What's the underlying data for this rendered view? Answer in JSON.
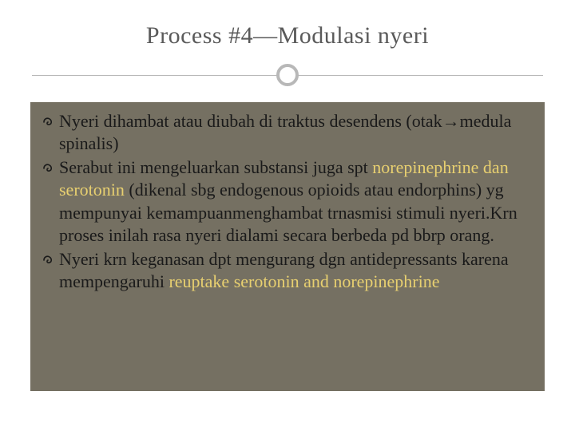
{
  "slide": {
    "title": "Process #4—Modulasi nyeri",
    "title_color": "#5a5a5a",
    "title_fontsize": 30,
    "divider_color": "#b8b8b8",
    "content_background": "#757062",
    "text_color": "#1a1a1a",
    "highlight_color": "#e8d070",
    "body_fontsize": 22,
    "bullets": [
      {
        "segments": [
          {
            "text": "Nyeri dihambat atau diubah di traktus desendens (otak",
            "highlight": false
          },
          {
            "text": "→",
            "highlight": false
          },
          {
            "text": "medula spinalis)",
            "highlight": false
          }
        ]
      },
      {
        "segments": [
          {
            "text": "Serabut ini mengeluarkan substansi juga spt ",
            "highlight": false
          },
          {
            "text": "norepinephrine dan serotonin",
            "highlight": true
          },
          {
            "text": " (dikenal sbg endogenous opioids atau endorphins) yg mempunyai kemampuanmenghambat trnasmisi stimuli nyeri.Krn proses inilah rasa nyeri dialami secara berbeda pd bbrp orang.",
            "highlight": false
          }
        ]
      },
      {
        "segments": [
          {
            "text": "Nyeri krn keganasan dpt mengurang dgn antidepressants karena mempengaruhi ",
            "highlight": false
          },
          {
            "text": "  reuptake serotonin and norepinephrine",
            "highlight": true
          }
        ]
      }
    ]
  }
}
